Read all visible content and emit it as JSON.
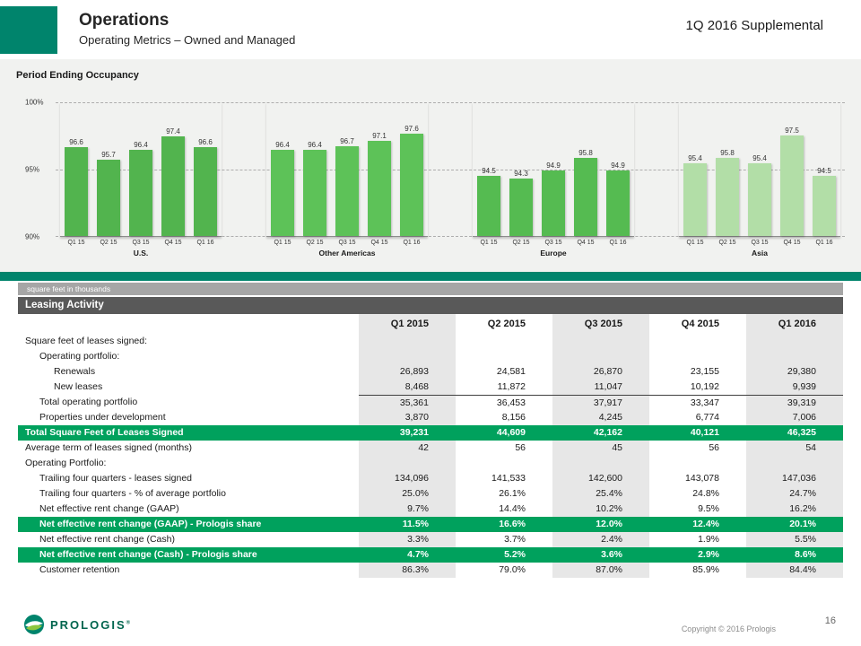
{
  "header": {
    "title": "Operations",
    "subtitle": "Operating Metrics – Owned and Managed",
    "right_label": "1Q 2016 Supplemental"
  },
  "chart": {
    "title": "Period Ending Occupancy",
    "yticks": [
      "100%",
      "95%",
      "90%"
    ],
    "ylim": [
      90,
      100
    ],
    "grid": "dashed horizontal at 100%, 95%, 90%"
  },
  "chart_data": [
    {
      "type": "bar",
      "region": "U.S.",
      "categories": [
        "Q1 15",
        "Q2 15",
        "Q3 15",
        "Q4 15",
        "Q1 16"
      ],
      "values": [
        96.6,
        95.7,
        96.4,
        97.4,
        96.6
      ],
      "color": "#52B44E"
    },
    {
      "type": "bar",
      "region": "Other Americas",
      "categories": [
        "Q1 15",
        "Q2 15",
        "Q3 15",
        "Q4 15",
        "Q1 16"
      ],
      "values": [
        96.4,
        96.4,
        96.7,
        97.1,
        97.6
      ],
      "color": "#5DC258"
    },
    {
      "type": "bar",
      "region": "Europe",
      "categories": [
        "Q1 15",
        "Q2 15",
        "Q3 15",
        "Q4 15",
        "Q1 16"
      ],
      "values": [
        94.5,
        94.3,
        94.9,
        95.8,
        94.9
      ],
      "color": "#55BB51"
    },
    {
      "type": "bar",
      "region": "Asia",
      "categories": [
        "Q1 15",
        "Q2 15",
        "Q3 15",
        "Q4 15",
        "Q1 16"
      ],
      "values": [
        95.4,
        95.8,
        95.4,
        97.5,
        94.5
      ],
      "color": "#B2DEA7"
    }
  ],
  "table": {
    "unit_note": "square feet in thousands",
    "title": "Leasing Activity",
    "columns": [
      "Q1 2015",
      "Q2 2015",
      "Q3 2015",
      "Q4 2015",
      "Q1 2016"
    ],
    "rows": [
      {
        "label": "Square feet of leases signed:",
        "indent": 0,
        "values": [
          "",
          "",
          "",
          "",
          ""
        ],
        "style": "plain"
      },
      {
        "label": "Operating portfolio:",
        "indent": 1,
        "values": [
          "",
          "",
          "",
          "",
          ""
        ],
        "style": "plain"
      },
      {
        "label": "Renewals",
        "indent": 2,
        "values": [
          "26,893",
          "24,581",
          "26,870",
          "23,155",
          "29,380"
        ],
        "style": "plain"
      },
      {
        "label": "New leases",
        "indent": 2,
        "values": [
          "8,468",
          "11,872",
          "11,047",
          "10,192",
          "9,939"
        ],
        "style": "plain"
      },
      {
        "label": "Total operating portfolio",
        "indent": 1,
        "values": [
          "35,361",
          "36,453",
          "37,917",
          "33,347",
          "39,319"
        ],
        "style": "sum"
      },
      {
        "label": "Properties under development",
        "indent": 1,
        "values": [
          "3,870",
          "8,156",
          "4,245",
          "6,774",
          "7,006"
        ],
        "style": "plain"
      },
      {
        "label": "Total Square Feet of Leases Signed",
        "indent": 0,
        "values": [
          "39,231",
          "44,609",
          "42,162",
          "40,121",
          "46,325"
        ],
        "style": "highlight"
      },
      {
        "label": "Average term of leases signed (months)",
        "indent": 0,
        "values": [
          "42",
          "56",
          "45",
          "56",
          "54"
        ],
        "style": "plain"
      },
      {
        "label": "Operating Portfolio:",
        "indent": 0,
        "values": [
          "",
          "",
          "",
          "",
          ""
        ],
        "style": "plain"
      },
      {
        "label": "Trailing four quarters - leases signed",
        "indent": 1,
        "values": [
          "134,096",
          "141,533",
          "142,600",
          "143,078",
          "147,036"
        ],
        "style": "plain"
      },
      {
        "label": "Trailing four quarters - % of average portfolio",
        "indent": 1,
        "values": [
          "25.0%",
          "26.1%",
          "25.4%",
          "24.8%",
          "24.7%"
        ],
        "style": "plain"
      },
      {
        "label": "Net effective rent change (GAAP)",
        "indent": 1,
        "values": [
          "9.7%",
          "14.4%",
          "10.2%",
          "9.5%",
          "16.2%"
        ],
        "style": "plain"
      },
      {
        "label": "Net effective rent change (GAAP) - Prologis share",
        "indent": 1,
        "values": [
          "11.5%",
          "16.6%",
          "12.0%",
          "12.4%",
          "20.1%"
        ],
        "style": "highlight"
      },
      {
        "label": "Net effective rent change (Cash)",
        "indent": 1,
        "values": [
          "3.3%",
          "3.7%",
          "2.4%",
          "1.9%",
          "5.5%"
        ],
        "style": "plain"
      },
      {
        "label": "Net effective rent change (Cash) - Prologis share",
        "indent": 1,
        "values": [
          "4.7%",
          "5.2%",
          "3.6%",
          "2.9%",
          "8.6%"
        ],
        "style": "highlight"
      },
      {
        "label": "Customer retention",
        "indent": 1,
        "values": [
          "86.3%",
          "79.0%",
          "87.0%",
          "85.9%",
          "84.4%"
        ],
        "style": "plain"
      }
    ],
    "shaded_columns": [
      0,
      2,
      4
    ]
  },
  "colors": {
    "brand_teal": "#00846C",
    "highlight_green": "#00A15D",
    "table_header_band": "#595959",
    "note_band": "#A6A6A6"
  },
  "footer": {
    "logo_text": "PROLOGIS",
    "logo_mark": "®",
    "copyright": "Copyright © 2016 Prologis",
    "page_number": "16"
  }
}
